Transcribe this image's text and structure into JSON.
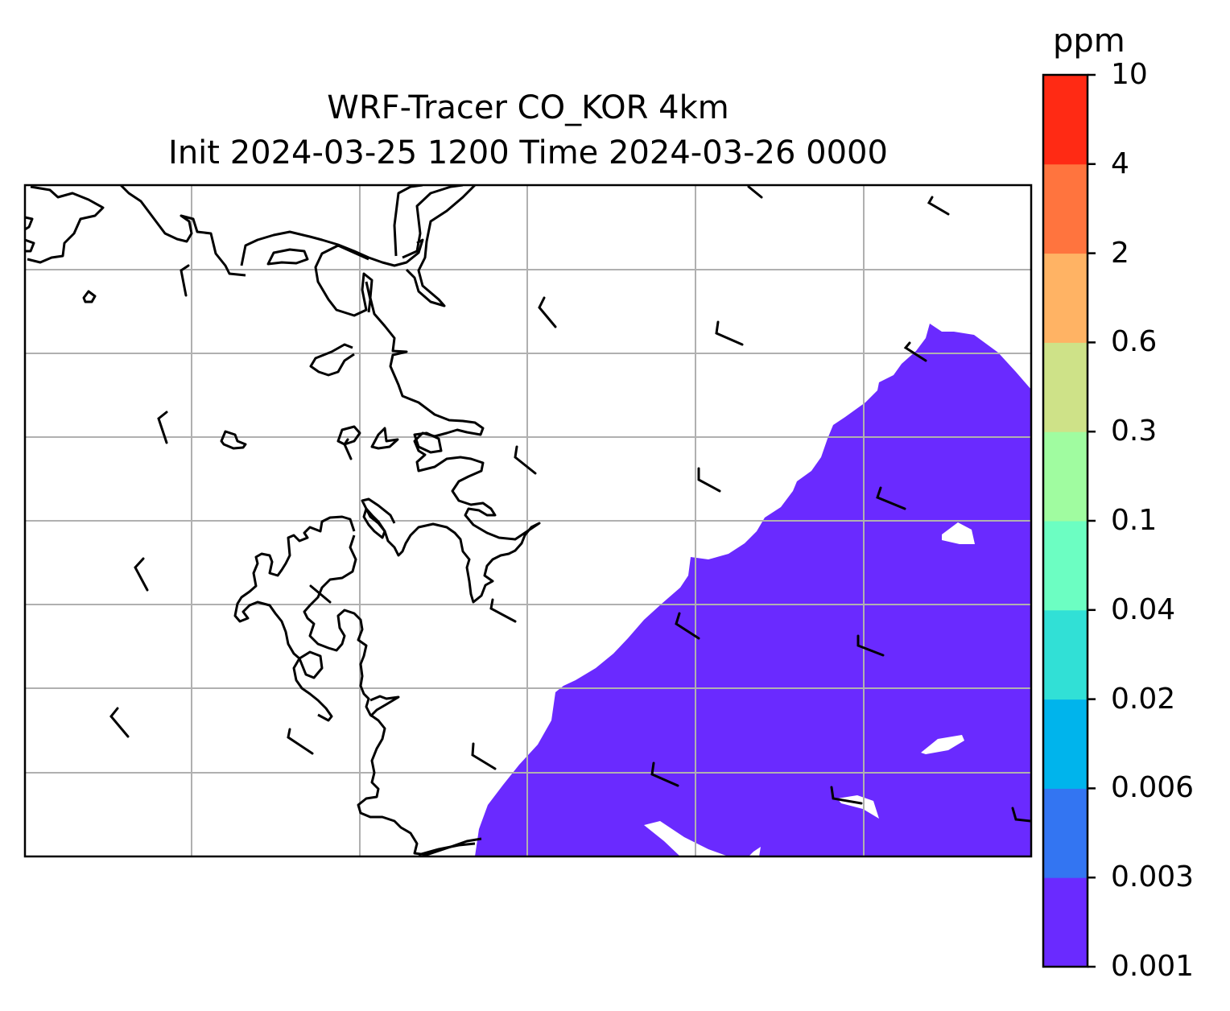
{
  "title": {
    "line1": "WRF-Tracer CO_KOR 4km",
    "line2": "Init 2024-03-25 1200 Time 2024-03-26 0000"
  },
  "colorbar": {
    "unit": "ppm",
    "tick_labels": [
      "0.001",
      "0.003",
      "0.006",
      "0.02",
      "0.04",
      "0.1",
      "0.3",
      "0.6",
      "2",
      "4",
      "10"
    ],
    "colors": [
      "#6a2aff",
      "#3375f2",
      "#00b4ec",
      "#31e0d6",
      "#6cfec2",
      "#a0fca0",
      "#cee288",
      "#ffb364",
      "#ff743e",
      "#ff2a14"
    ]
  },
  "map": {
    "fill_color": "#6a2aff",
    "grid_color": "#b0b0b0",
    "coastline_color": "#000000",
    "wind_barb_count": 24
  }
}
